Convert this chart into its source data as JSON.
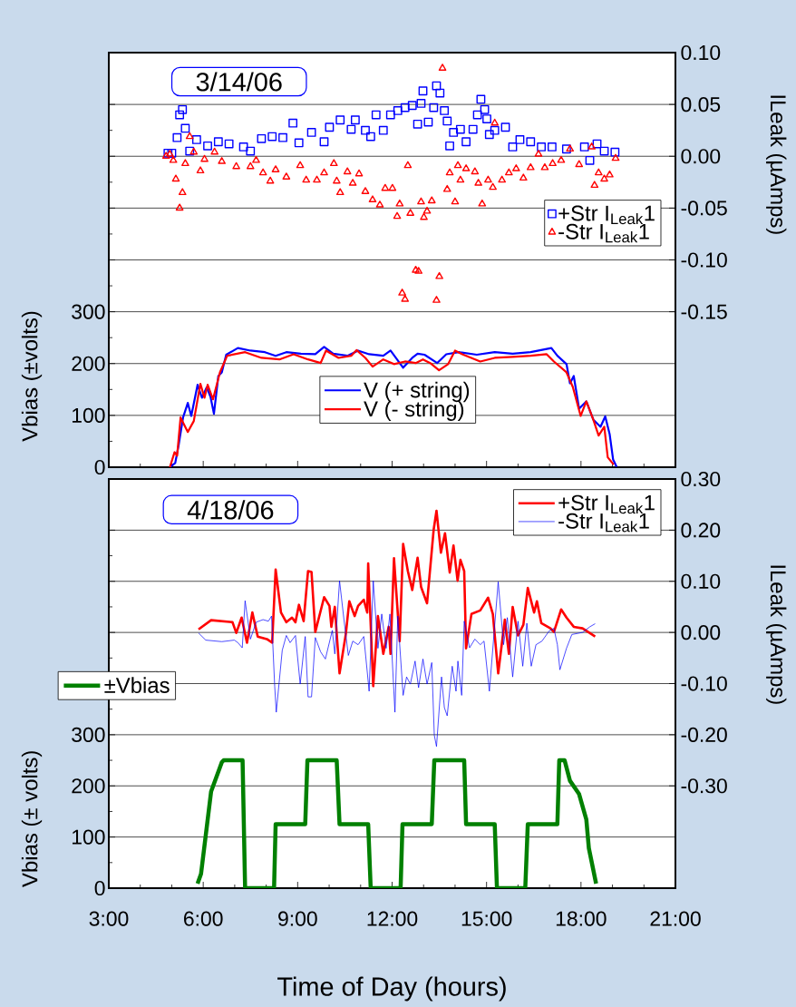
{
  "chart_data": [
    {
      "type": "line",
      "annotations": [
        "3/14/06"
      ],
      "ylabel": "Vbias (±volts)",
      "y2label": "ILeak (µAmps)",
      "xlim": [
        3,
        21
      ],
      "xticks": [
        {
          "value": 3,
          "label": null
        },
        {
          "value": 6,
          "label": null
        },
        {
          "value": 9,
          "label": null
        },
        {
          "value": 12,
          "label": null
        },
        {
          "value": 15,
          "label": null
        },
        {
          "value": 18,
          "label": null
        },
        {
          "value": 21,
          "label": null
        }
      ],
      "ylim": [
        0,
        800
      ],
      "yticks": [
        0,
        100,
        200,
        300,
        {
          "value": 400,
          "label": null
        },
        {
          "value": 500,
          "label": null
        },
        {
          "value": 600,
          "label": null
        },
        {
          "value": 700,
          "label": null
        }
      ],
      "y2lim": [
        -0.3,
        0.1
      ],
      "y2ticks": [
        {
          "value": -0.15,
          "label": "-0.15"
        },
        {
          "value": -0.1,
          "label": "-0.10"
        },
        {
          "value": -0.05,
          "label": "-0.05"
        },
        {
          "value": 0,
          "label": "0.00"
        },
        {
          "value": 0.05,
          "label": "0.05"
        },
        {
          "value": 0.1,
          "label": "0.10"
        }
      ],
      "grid": "y",
      "legend": "right",
      "tick_labels": "y",
      "line_style": "solid",
      "series": [
        {
          "name": "V (+ string)",
          "color": "#0000ff",
          "marker": "none",
          "x": [
            4.94,
            5.11,
            5.22,
            5.36,
            5.51,
            5.62,
            5.82,
            5.96,
            6.11,
            6.23,
            6.34,
            6.48,
            6.59,
            6.73,
            7.1,
            7.5,
            7.96,
            8.3,
            8.64,
            9.1,
            9.56,
            9.84,
            10.13,
            10.58,
            10.92,
            11.27,
            11.72,
            11.95,
            12.35,
            12.64,
            12.81,
            13.03,
            13.43,
            13.72,
            14.12,
            14.69,
            15.26,
            15.83,
            16.4,
            17.06,
            17.25,
            17.54,
            17.65,
            17.77,
            17.94,
            18.17,
            18.39,
            18.62,
            18.77,
            18.91,
            19.02,
            19.13
          ],
          "values": [
            0,
            8,
            43,
            96,
            124,
            99,
            159,
            134,
            154,
            136,
            103,
            176,
            183,
            217,
            230,
            225,
            222,
            215,
            222,
            219,
            218,
            232,
            219,
            215,
            225,
            218,
            215,
            225,
            192,
            211,
            219,
            217,
            201,
            218,
            222,
            217,
            222,
            219,
            222,
            230,
            215,
            199,
            162,
            176,
            113,
            127,
            92,
            78,
            98,
            64,
            15,
            1
          ]
        },
        {
          "name": "V (- string)",
          "color": "#ff0000",
          "marker": "none",
          "x": [
            4.94,
            5.09,
            5.17,
            5.28,
            5.51,
            5.7,
            5.91,
            6.04,
            6.14,
            6.31,
            6.53,
            6.76,
            7.33,
            7.85,
            8.42,
            8.87,
            9.33,
            9.73,
            9.9,
            10.3,
            10.7,
            10.87,
            11.15,
            11.38,
            11.72,
            12.06,
            12.41,
            12.75,
            12.98,
            13.21,
            13.49,
            13.78,
            14.0,
            14.23,
            14.8,
            15.26,
            15.83,
            16.4,
            16.91,
            17.14,
            17.54,
            17.74,
            17.99,
            18.17,
            18.39,
            18.56,
            18.74,
            18.85,
            19.04
          ],
          "values": [
            0,
            29,
            22,
            96,
            68,
            89,
            161,
            134,
            159,
            131,
            183,
            215,
            222,
            211,
            208,
            218,
            208,
            201,
            225,
            211,
            215,
            226,
            211,
            194,
            208,
            199,
            204,
            201,
            208,
            201,
            187,
            199,
            225,
            218,
            204,
            211,
            213,
            215,
            218,
            204,
            183,
            155,
            99,
            127,
            92,
            61,
            78,
            19,
            5
          ]
        },
        {
          "name": "+Str I$_{Leak}$1",
          "type": "scatter",
          "axis": "y2",
          "marker": "square",
          "color": "#0000ff",
          "x": [
            4.88,
            5.0,
            5.17,
            5.25,
            5.34,
            5.43,
            5.57,
            5.79,
            6.14,
            6.48,
            6.82,
            7.28,
            7.5,
            7.85,
            8.19,
            8.53,
            8.85,
            9.04,
            9.44,
            9.84,
            10.01,
            10.35,
            10.7,
            10.83,
            11.15,
            11.32,
            11.49,
            11.72,
            11.95,
            12.18,
            12.41,
            12.64,
            12.81,
            12.92,
            12.98,
            13.15,
            13.32,
            13.41,
            13.52,
            13.66,
            13.75,
            13.83,
            13.95,
            14.17,
            14.35,
            14.57,
            14.71,
            14.82,
            14.94,
            15.01,
            15.09,
            15.26,
            15.6,
            15.83,
            16.06,
            16.4,
            16.74,
            17.08,
            17.54,
            18.11,
            18.28,
            18.51,
            18.74,
            19.08
          ],
          "values": [
            0.003,
            0.003,
            0.018,
            0.04,
            0.045,
            0.027,
            0.005,
            0.016,
            0.01,
            0.014,
            0.012,
            0.009,
            0.005,
            0.017,
            0.019,
            0.018,
            0.032,
            0.013,
            0.023,
            0.014,
            0.028,
            0.035,
            0.026,
            0.035,
            0.025,
            0.019,
            0.04,
            0.025,
            0.04,
            0.044,
            0.047,
            0.049,
            0.031,
            0.051,
            0.063,
            0.033,
            0.047,
            0.068,
            0.061,
            0.044,
            0.034,
            0.01,
            0.023,
            0.026,
            0.014,
            0.026,
            0.04,
            0.055,
            0.045,
            0.036,
            0.021,
            0.025,
            0.028,
            0.009,
            0.016,
            0.014,
            0.009,
            0.009,
            0.007,
            0.009,
            -0.004,
            0.012,
            0.005,
            0.004
          ]
        },
        {
          "name": "-Str I$_{Leak}$1",
          "type": "scatter",
          "axis": "y2",
          "marker": "triangle",
          "color": "#ff0000",
          "x": [
            4.82,
            4.94,
            5.05,
            5.13,
            5.25,
            5.34,
            5.43,
            5.57,
            5.7,
            5.91,
            6.04,
            6.36,
            6.59,
            7.05,
            7.5,
            7.68,
            7.9,
            8.13,
            8.3,
            8.64,
            9.08,
            9.27,
            9.61,
            9.84,
            10.15,
            10.24,
            10.35,
            10.58,
            10.75,
            10.95,
            11.15,
            11.38,
            11.61,
            11.78,
            12.01,
            12.16,
            12.24,
            12.32,
            12.41,
            12.5,
            12.58,
            12.75,
            12.84,
            12.92,
            13.01,
            13.11,
            13.26,
            13.41,
            13.5,
            13.6,
            13.75,
            13.83,
            14.0,
            14.09,
            14.17,
            14.35,
            14.63,
            14.74,
            14.86,
            15.05,
            15.2,
            15.26,
            15.49,
            15.71,
            15.94,
            16.17,
            16.4,
            16.65,
            16.85,
            17.1,
            17.37,
            17.65,
            17.94,
            18.34,
            18.43,
            18.56,
            18.74,
            18.91,
            19.1
          ],
          "values": [
            0.0,
            0.002,
            -0.004,
            -0.022,
            -0.05,
            -0.035,
            -0.007,
            0.019,
            0.004,
            -0.014,
            -0.003,
            0.004,
            -0.005,
            -0.01,
            -0.01,
            -0.004,
            -0.016,
            -0.024,
            -0.013,
            -0.02,
            -0.009,
            -0.023,
            -0.023,
            -0.016,
            -0.007,
            -0.024,
            -0.035,
            -0.015,
            -0.026,
            -0.017,
            -0.034,
            -0.042,
            -0.047,
            -0.031,
            -0.031,
            -0.058,
            -0.046,
            -0.132,
            -0.138,
            -0.009,
            -0.055,
            -0.11,
            -0.111,
            -0.044,
            -0.059,
            -0.053,
            -0.043,
            -0.139,
            -0.116,
            0.085,
            -0.032,
            -0.016,
            -0.044,
            -0.009,
            -0.023,
            -0.012,
            -0.015,
            -0.026,
            -0.046,
            -0.023,
            -0.03,
            0.032,
            -0.023,
            -0.016,
            -0.012,
            -0.021,
            -0.011,
            0.002,
            -0.011,
            -0.007,
            -0.004,
            0.007,
            -0.008,
            0.009,
            -0.028,
            -0.016,
            -0.022,
            -0.018,
            -0.002
          ]
        }
      ]
    },
    {
      "type": "line",
      "annotations": [
        "4/18/06"
      ],
      "xlabel": "Time of Day (hours)",
      "ylabel": "Vbias (± volts)",
      "y2label": "ILeak (µAmps)",
      "xlim": [
        3,
        21
      ],
      "xticks": [
        {
          "value": 3,
          "label": "3:00"
        },
        {
          "value": 6,
          "label": "6:00"
        },
        {
          "value": 9,
          "label": "9:00"
        },
        {
          "value": 12,
          "label": "12:00"
        },
        {
          "value": 15,
          "label": "15:00"
        },
        {
          "value": 18,
          "label": "18:00"
        },
        {
          "value": 21,
          "label": "21:00"
        }
      ],
      "ylim": [
        0,
        800
      ],
      "yticks": [
        0,
        100,
        200,
        300,
        {
          "value": 400,
          "label": null
        },
        {
          "value": 500,
          "label": null
        },
        {
          "value": 600,
          "label": null
        },
        {
          "value": 700,
          "label": null
        }
      ],
      "y2lim": [
        -0.5,
        0.3
      ],
      "y2ticks": [
        {
          "value": -0.3,
          "label": "-0.30"
        },
        {
          "value": -0.2,
          "label": "-0.20"
        },
        {
          "value": -0.1,
          "label": "-0.10"
        },
        {
          "value": 0,
          "label": "0.00"
        },
        {
          "value": 0.1,
          "label": "0.10"
        },
        {
          "value": 0.2,
          "label": "0.20"
        },
        {
          "value": 0.3,
          "label": "0.30"
        }
      ],
      "grid": "y",
      "legend": "top left",
      "line_style": "solid",
      "series": [
        {
          "name": "+Str I$_{Leak}$1",
          "axis": "y2",
          "color": "#ff0000",
          "marker": "none",
          "x": [
            5.85,
            6.25,
            6.93,
            7.05,
            7.22,
            7.39,
            7.56,
            7.73,
            8.02,
            8.19,
            8.3,
            8.47,
            8.64,
            8.82,
            8.93,
            9.04,
            9.19,
            9.33,
            9.44,
            9.56,
            9.84,
            10.01,
            10.07,
            10.18,
            10.33,
            10.53,
            10.64,
            10.81,
            10.92,
            11.1,
            11.21,
            11.24,
            11.4,
            11.55,
            11.72,
            11.89,
            11.95,
            12.06,
            12.24,
            12.35,
            12.5,
            12.64,
            12.81,
            12.92,
            13.11,
            13.32,
            13.41,
            13.55,
            13.68,
            13.83,
            13.95,
            14.08,
            14.17,
            14.29,
            14.35,
            14.52,
            14.8,
            15.05,
            15.2,
            15.37,
            15.58,
            15.71,
            15.83,
            16.0,
            16.17,
            16.31,
            16.51,
            16.6,
            16.74,
            17.03,
            17.14,
            17.37,
            17.54,
            17.77,
            18.05,
            18.45
          ],
          "values": [
            0.006,
            0.024,
            0.02,
            -0.001,
            0.029,
            -0.02,
            0.039,
            -0.008,
            -0.013,
            -0.02,
            0.123,
            0.039,
            0.02,
            0.029,
            0.02,
            0.054,
            0.022,
            0.12,
            0.118,
            0.001,
            0.069,
            0.052,
            0.011,
            0.05,
            -0.08,
            -0.003,
            0.061,
            0.032,
            0.052,
            0.064,
            0.039,
            0.135,
            -0.105,
            0.032,
            -0.042,
            0.011,
            -0.042,
            0.145,
            -0.017,
            0.173,
            0.12,
            0.083,
            0.146,
            0.089,
            0.057,
            0.201,
            0.238,
            0.156,
            0.194,
            0.117,
            0.17,
            0.101,
            0.142,
            0.12,
            -0.031,
            0.036,
            0.043,
            0.068,
            0.036,
            -0.08,
            0.025,
            -0.042,
            0.05,
            -0.006,
            0.015,
            0.087,
            0.039,
            0.061,
            0.018,
            0.008,
            0.001,
            0.045,
            0.029,
            0.011,
            0.008,
            -0.008
          ]
        },
        {
          "name": "-Str I$_{Leak}$1",
          "axis": "y2",
          "color": "#0000ff",
          "marker": "none",
          "x": [
            5.85,
            6.08,
            6.59,
            6.99,
            7.1,
            7.24,
            7.33,
            7.5,
            7.68,
            7.9,
            8.07,
            8.17,
            8.27,
            8.32,
            8.51,
            8.64,
            8.76,
            8.93,
            9.08,
            9.24,
            9.33,
            9.44,
            9.56,
            9.73,
            9.88,
            10.1,
            10.18,
            10.33,
            10.47,
            10.61,
            10.75,
            10.92,
            11.1,
            11.27,
            11.4,
            11.55,
            11.67,
            11.81,
            11.93,
            12.09,
            12.18,
            12.35,
            12.46,
            12.58,
            12.73,
            12.84,
            12.98,
            13.11,
            13.26,
            13.34,
            13.41,
            13.57,
            13.66,
            13.75,
            13.91,
            14.03,
            14.09,
            14.21,
            14.29,
            14.46,
            14.63,
            14.8,
            14.92,
            15.09,
            15.37,
            15.54,
            15.66,
            15.83,
            16.0,
            16.15,
            16.28,
            16.42,
            16.57,
            16.76,
            16.99,
            17.14,
            17.25,
            17.33,
            17.54,
            17.71,
            18.05,
            18.28,
            18.45
          ],
          "values": [
            -0.001,
            -0.015,
            -0.018,
            -0.015,
            -0.02,
            -0.03,
            0.062,
            -0.013,
            0.02,
            0.025,
            0.022,
            0.032,
            -0.105,
            -0.156,
            -0.035,
            -0.006,
            -0.02,
            -0.006,
            -0.101,
            -0.008,
            -0.126,
            -0.126,
            -0.01,
            -0.038,
            -0.052,
            0.004,
            -0.042,
            0.101,
            0.025,
            -0.045,
            -0.017,
            -0.024,
            -0.008,
            -0.115,
            0.101,
            -0.031,
            0.036,
            -0.031,
            0.036,
            -0.156,
            0.032,
            -0.123,
            -0.087,
            -0.101,
            -0.056,
            -0.108,
            -0.052,
            -0.101,
            -0.059,
            -0.201,
            -0.223,
            -0.087,
            -0.147,
            -0.163,
            -0.066,
            -0.115,
            -0.056,
            -0.123,
            0.022,
            -0.03,
            -0.013,
            -0.024,
            -0.017,
            -0.115,
            0.099,
            -0.024,
            0.029,
            -0.087,
            0.022,
            -0.066,
            0.018,
            -0.066,
            -0.024,
            -0.017,
            0.003,
            0.008,
            -0.024,
            -0.073,
            -0.031,
            -0.004,
            0.0,
            0.011,
            0.017
          ]
        },
        {
          "name": "±Vbias",
          "color": "#008000",
          "marker": "none",
          "x": [
            5.82,
            5.93,
            6.25,
            6.59,
            6.65,
            7.25,
            7.33,
            8.25,
            8.3,
            9.24,
            9.31,
            10.24,
            10.33,
            11.24,
            11.32,
            12.27,
            12.33,
            13.26,
            13.34,
            14.29,
            14.35,
            15.26,
            15.33,
            16.23,
            16.31,
            17.25,
            17.31,
            17.48,
            17.65,
            17.94,
            18.17,
            18.25,
            18.48
          ],
          "values": [
            9,
            28,
            189,
            246,
            250,
            250,
            0,
            0,
            125,
            125,
            250,
            250,
            125,
            125,
            0,
            0,
            125,
            125,
            250,
            250,
            125,
            125,
            0,
            0,
            125,
            125,
            250,
            250,
            210,
            184,
            134,
            78,
            9
          ]
        }
      ]
    }
  ]
}
